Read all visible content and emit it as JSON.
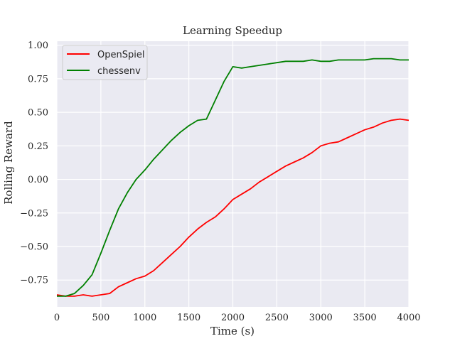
{
  "chart_data": {
    "type": "line",
    "title": "Learning Speedup",
    "xlabel": "Time (s)",
    "ylabel": "Rolling Reward",
    "xlim": [
      0,
      4000
    ],
    "ylim": [
      -0.95,
      1.03
    ],
    "grid": true,
    "legend_position": "top-left",
    "x_ticks": [
      0,
      500,
      1000,
      1500,
      2000,
      2500,
      3000,
      3500,
      4000
    ],
    "x_tick_labels": [
      "0",
      "500",
      "1000",
      "1500",
      "2000",
      "2500",
      "3000",
      "3500",
      "4000"
    ],
    "y_ticks": [
      -0.75,
      -0.5,
      -0.25,
      0.0,
      0.25,
      0.5,
      0.75,
      1.0
    ],
    "y_tick_labels": [
      "−0.75",
      "−0.50",
      "−0.25",
      "0.00",
      "0.25",
      "0.50",
      "0.75",
      "1.00"
    ],
    "series": [
      {
        "name": "OpenSpiel",
        "color": "#ff0000",
        "x": [
          0,
          100,
          200,
          300,
          400,
          500,
          600,
          700,
          800,
          900,
          1000,
          1100,
          1200,
          1300,
          1400,
          1500,
          1600,
          1700,
          1800,
          1900,
          2000,
          2100,
          2200,
          2300,
          2400,
          2500,
          2600,
          2700,
          2800,
          2900,
          3000,
          3100,
          3200,
          3300,
          3400,
          3500,
          3600,
          3700,
          3800,
          3900,
          4000
        ],
        "y": [
          -0.86,
          -0.87,
          -0.87,
          -0.86,
          -0.87,
          -0.86,
          -0.85,
          -0.8,
          -0.77,
          -0.74,
          -0.72,
          -0.68,
          -0.62,
          -0.56,
          -0.5,
          -0.43,
          -0.37,
          -0.32,
          -0.28,
          -0.22,
          -0.15,
          -0.11,
          -0.07,
          -0.02,
          0.02,
          0.06,
          0.1,
          0.13,
          0.16,
          0.2,
          0.25,
          0.27,
          0.28,
          0.31,
          0.34,
          0.37,
          0.39,
          0.42,
          0.44,
          0.45,
          0.44
        ]
      },
      {
        "name": "chessenv",
        "color": "#008000",
        "x": [
          0,
          100,
          200,
          300,
          400,
          500,
          600,
          700,
          800,
          900,
          1000,
          1100,
          1200,
          1300,
          1400,
          1500,
          1600,
          1700,
          1800,
          1900,
          2000,
          2100,
          2200,
          2300,
          2400,
          2500,
          2600,
          2700,
          2800,
          2900,
          3000,
          3100,
          3200,
          3300,
          3400,
          3500,
          3600,
          3700,
          3800,
          3900,
          4000
        ],
        "y": [
          -0.87,
          -0.87,
          -0.85,
          -0.79,
          -0.71,
          -0.55,
          -0.38,
          -0.22,
          -0.1,
          0.0,
          0.07,
          0.15,
          0.22,
          0.29,
          0.35,
          0.4,
          0.44,
          0.45,
          0.59,
          0.73,
          0.84,
          0.83,
          0.84,
          0.85,
          0.86,
          0.87,
          0.88,
          0.88,
          0.88,
          0.89,
          0.88,
          0.88,
          0.89,
          0.89,
          0.89,
          0.89,
          0.9,
          0.9,
          0.9,
          0.89,
          0.89
        ]
      }
    ]
  }
}
